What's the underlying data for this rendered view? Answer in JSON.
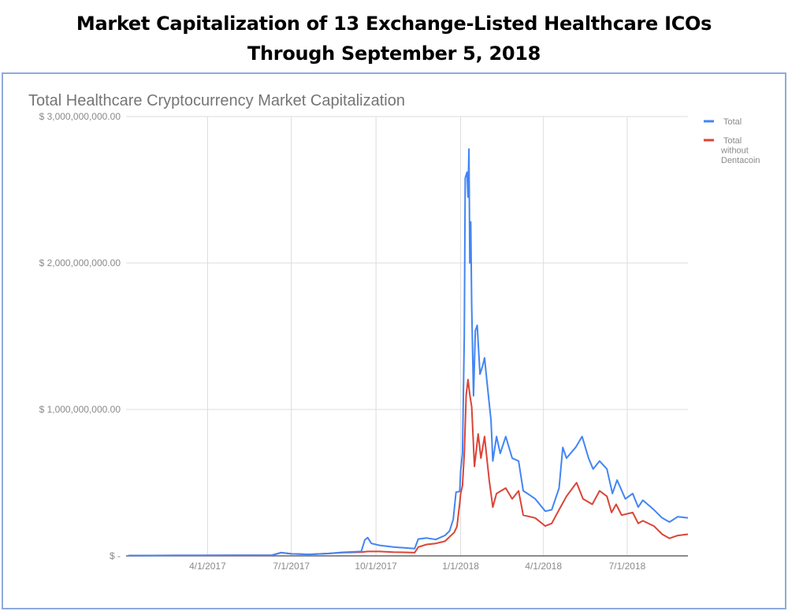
{
  "header": {
    "title_line1": "Market Capitalization of 13 Exchange-Listed Healthcare ICOs",
    "title_line2": "Through September 5, 2018"
  },
  "chart_data": {
    "type": "line",
    "title": "Total Healthcare Cryptocurrency Market Capitalization",
    "xlabel": "",
    "ylabel": "",
    "units": "USD millions",
    "xlim": [
      "2017-01-05",
      "2018-09-05"
    ],
    "ylim": [
      0,
      3000
    ],
    "grid": true,
    "legend_position": "right",
    "y_ticks": [
      {
        "value": 0,
        "label": "$ -"
      },
      {
        "value": 1000,
        "label": "$ 1,000,000,000.00"
      },
      {
        "value": 2000,
        "label": "$ 2,000,000,000.00"
      },
      {
        "value": 3000,
        "label": "$ 3,000,000,000.00"
      }
    ],
    "x_ticks": [
      {
        "value": "2017-04-01",
        "label": "4/1/2017"
      },
      {
        "value": "2017-07-01",
        "label": "7/1/2017"
      },
      {
        "value": "2017-10-01",
        "label": "10/1/2017"
      },
      {
        "value": "2018-01-01",
        "label": "1/1/2018"
      },
      {
        "value": "2018-04-01",
        "label": "4/1/2018"
      },
      {
        "value": "2018-07-01",
        "label": "7/1/2018"
      }
    ],
    "series": [
      {
        "name": "Total",
        "legend_lines": [
          "Total"
        ],
        "color": "#4285f4",
        "points": [
          [
            "2017-01-05",
            2
          ],
          [
            "2017-03-01",
            3
          ],
          [
            "2017-05-01",
            4
          ],
          [
            "2017-06-10",
            5
          ],
          [
            "2017-06-20",
            22
          ],
          [
            "2017-07-01",
            14
          ],
          [
            "2017-07-20",
            10
          ],
          [
            "2017-08-10",
            16
          ],
          [
            "2017-08-25",
            24
          ],
          [
            "2017-09-15",
            30
          ],
          [
            "2017-09-19",
            110
          ],
          [
            "2017-09-22",
            125
          ],
          [
            "2017-09-26",
            85
          ],
          [
            "2017-10-05",
            72
          ],
          [
            "2017-10-20",
            60
          ],
          [
            "2017-11-01",
            55
          ],
          [
            "2017-11-12",
            50
          ],
          [
            "2017-11-16",
            115
          ],
          [
            "2017-11-25",
            122
          ],
          [
            "2017-12-05",
            112
          ],
          [
            "2017-12-15",
            140
          ],
          [
            "2017-12-20",
            170
          ],
          [
            "2017-12-24",
            250
          ],
          [
            "2017-12-27",
            435
          ],
          [
            "2017-12-31",
            440
          ],
          [
            "2018-01-01",
            583
          ],
          [
            "2018-01-03",
            700
          ],
          [
            "2018-01-05",
            1500
          ],
          [
            "2018-01-06",
            2580
          ],
          [
            "2018-01-08",
            2620
          ],
          [
            "2018-01-09",
            2450
          ],
          [
            "2018-01-10",
            2778
          ],
          [
            "2018-01-11",
            2000
          ],
          [
            "2018-01-12",
            2280
          ],
          [
            "2018-01-13",
            1700
          ],
          [
            "2018-01-15",
            1093
          ],
          [
            "2018-01-17",
            1537
          ],
          [
            "2018-01-19",
            1574
          ],
          [
            "2018-01-22",
            1241
          ],
          [
            "2018-01-25",
            1300
          ],
          [
            "2018-01-27",
            1352
          ],
          [
            "2018-01-30",
            1167
          ],
          [
            "2018-02-03",
            926
          ],
          [
            "2018-02-05",
            648
          ],
          [
            "2018-02-09",
            815
          ],
          [
            "2018-02-13",
            700
          ],
          [
            "2018-02-19",
            815
          ],
          [
            "2018-02-26",
            667
          ],
          [
            "2018-03-05",
            648
          ],
          [
            "2018-03-10",
            444
          ],
          [
            "2018-03-16",
            420
          ],
          [
            "2018-03-23",
            389
          ],
          [
            "2018-04-03",
            305
          ],
          [
            "2018-04-10",
            315
          ],
          [
            "2018-04-18",
            463
          ],
          [
            "2018-04-22",
            741
          ],
          [
            "2018-04-26",
            667
          ],
          [
            "2018-05-06",
            741
          ],
          [
            "2018-05-13",
            815
          ],
          [
            "2018-05-20",
            667
          ],
          [
            "2018-05-25",
            593
          ],
          [
            "2018-06-01",
            648
          ],
          [
            "2018-06-09",
            593
          ],
          [
            "2018-06-15",
            426
          ],
          [
            "2018-06-20",
            518
          ],
          [
            "2018-06-29",
            389
          ],
          [
            "2018-07-07",
            426
          ],
          [
            "2018-07-13",
            333
          ],
          [
            "2018-07-18",
            380
          ],
          [
            "2018-07-30",
            315
          ],
          [
            "2018-08-08",
            259
          ],
          [
            "2018-08-16",
            231
          ],
          [
            "2018-08-25",
            268
          ],
          [
            "2018-09-05",
            259
          ]
        ]
      },
      {
        "name": "Total without Dentacoin",
        "legend_lines": [
          "Total",
          "without",
          "Dentacoin"
        ],
        "color": "#db4437",
        "points": [
          [
            "2017-01-05",
            2
          ],
          [
            "2017-03-01",
            3
          ],
          [
            "2017-05-01",
            4
          ],
          [
            "2017-06-10",
            5
          ],
          [
            "2017-06-20",
            22
          ],
          [
            "2017-07-01",
            14
          ],
          [
            "2017-07-20",
            10
          ],
          [
            "2017-08-10",
            16
          ],
          [
            "2017-08-25",
            22
          ],
          [
            "2017-09-15",
            26
          ],
          [
            "2017-09-22",
            30
          ],
          [
            "2017-10-05",
            30
          ],
          [
            "2017-10-20",
            26
          ],
          [
            "2017-11-01",
            24
          ],
          [
            "2017-11-12",
            22
          ],
          [
            "2017-11-16",
            60
          ],
          [
            "2017-11-25",
            78
          ],
          [
            "2017-12-05",
            85
          ],
          [
            "2017-12-15",
            100
          ],
          [
            "2017-12-20",
            130
          ],
          [
            "2017-12-25",
            160
          ],
          [
            "2017-12-28",
            200
          ],
          [
            "2017-12-31",
            360
          ],
          [
            "2018-01-01",
            426
          ],
          [
            "2018-01-03",
            480
          ],
          [
            "2018-01-05",
            700
          ],
          [
            "2018-01-07",
            1100
          ],
          [
            "2018-01-09",
            1204
          ],
          [
            "2018-01-11",
            1100
          ],
          [
            "2018-01-13",
            1018
          ],
          [
            "2018-01-16",
            611
          ],
          [
            "2018-01-20",
            833
          ],
          [
            "2018-01-23",
            667
          ],
          [
            "2018-01-27",
            815
          ],
          [
            "2018-02-01",
            518
          ],
          [
            "2018-02-05",
            333
          ],
          [
            "2018-02-09",
            426
          ],
          [
            "2018-02-19",
            463
          ],
          [
            "2018-02-26",
            389
          ],
          [
            "2018-03-05",
            444
          ],
          [
            "2018-03-10",
            278
          ],
          [
            "2018-03-23",
            259
          ],
          [
            "2018-04-03",
            204
          ],
          [
            "2018-04-10",
            222
          ],
          [
            "2018-04-18",
            315
          ],
          [
            "2018-04-26",
            407
          ],
          [
            "2018-05-07",
            500
          ],
          [
            "2018-05-14",
            389
          ],
          [
            "2018-05-24",
            352
          ],
          [
            "2018-06-01",
            444
          ],
          [
            "2018-06-09",
            407
          ],
          [
            "2018-06-14",
            296
          ],
          [
            "2018-06-19",
            352
          ],
          [
            "2018-06-25",
            278
          ],
          [
            "2018-07-07",
            296
          ],
          [
            "2018-07-13",
            222
          ],
          [
            "2018-07-18",
            240
          ],
          [
            "2018-07-30",
            204
          ],
          [
            "2018-08-08",
            148
          ],
          [
            "2018-08-16",
            120
          ],
          [
            "2018-08-25",
            139
          ],
          [
            "2018-09-05",
            148
          ]
        ]
      }
    ]
  }
}
